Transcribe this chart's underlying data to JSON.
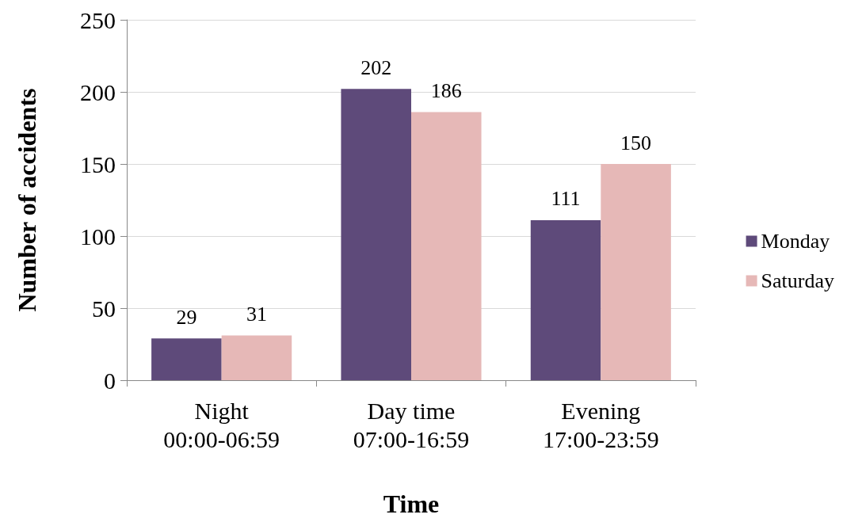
{
  "chart_data": {
    "type": "bar",
    "xlabel": "Time",
    "ylabel": "Number of accidents",
    "categories": [
      "Night\n00:00-06:59",
      "Day time\n07:00-16:59",
      "Evening\n17:00-23:59"
    ],
    "series": [
      {
        "name": "Monday",
        "color": "#5e4a7a",
        "values": [
          29,
          202,
          111
        ]
      },
      {
        "name": "Saturday",
        "color": "#e6b8b7",
        "values": [
          31,
          186,
          150
        ]
      }
    ],
    "ylim": [
      0,
      250
    ],
    "yticks": [
      0,
      50,
      100,
      150,
      200,
      250
    ],
    "grid": "y",
    "legend": "right",
    "data_labels": true
  }
}
